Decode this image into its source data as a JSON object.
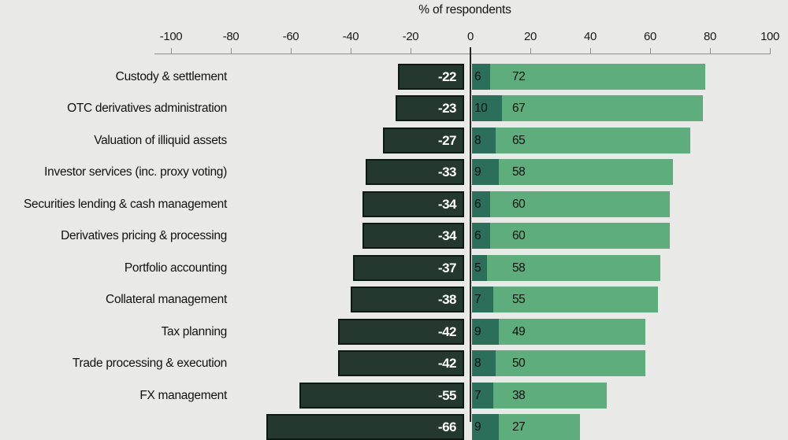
{
  "chart_data": {
    "type": "bar",
    "variant": "horizontal-diverging-stacked",
    "title": "% of respondents",
    "xlabel": "% of respondents",
    "xlim": [
      -100,
      100
    ],
    "x_ticks": [
      -100,
      -80,
      -60,
      -40,
      -20,
      0,
      20,
      40,
      60,
      80,
      100
    ],
    "grid": "off",
    "legend": "none",
    "series": [
      {
        "name": "negative",
        "color": "#243830"
      },
      {
        "name": "neutral",
        "color": "#2b6e5a"
      },
      {
        "name": "positive",
        "color": "#5ead7c"
      }
    ],
    "rows": [
      {
        "label": "Custody & settlement",
        "negative": -22,
        "neutral": 6,
        "positive": 72
      },
      {
        "label": "OTC derivatives administration",
        "negative": -23,
        "neutral": 10,
        "positive": 67
      },
      {
        "label": "Valuation of illiquid assets",
        "negative": -27,
        "neutral": 8,
        "positive": 65
      },
      {
        "label": "Investor services (inc. proxy voting)",
        "negative": -33,
        "neutral": 9,
        "positive": 58
      },
      {
        "label": "Securities lending & cash management",
        "negative": -34,
        "neutral": 6,
        "positive": 60
      },
      {
        "label": "Derivatives pricing & processing",
        "negative": -34,
        "neutral": 6,
        "positive": 60
      },
      {
        "label": "Portfolio accounting",
        "negative": -37,
        "neutral": 5,
        "positive": 58
      },
      {
        "label": "Collateral management",
        "negative": -38,
        "neutral": 7,
        "positive": 55
      },
      {
        "label": "Tax planning",
        "negative": -42,
        "neutral": 9,
        "positive": 49
      },
      {
        "label": "Trade processing & execution",
        "negative": -42,
        "neutral": 8,
        "positive": 50
      },
      {
        "label": "FX management",
        "negative": -55,
        "neutral": 7,
        "positive": 38
      },
      {
        "label": "",
        "negative": -66,
        "neutral": 9,
        "positive": 27,
        "clipped": true
      }
    ]
  },
  "colors": {
    "background": "#e9e9e7",
    "axis": "#8f8f8f",
    "zero_line": "#262626",
    "negative_bar_fill": "#243830",
    "negative_bar_border": "#0c1914",
    "neutral_bar": "#2b6e5a",
    "positive_bar": "#5ead7c",
    "negative_value_text": "#ffffff",
    "value_text": "#101010"
  }
}
